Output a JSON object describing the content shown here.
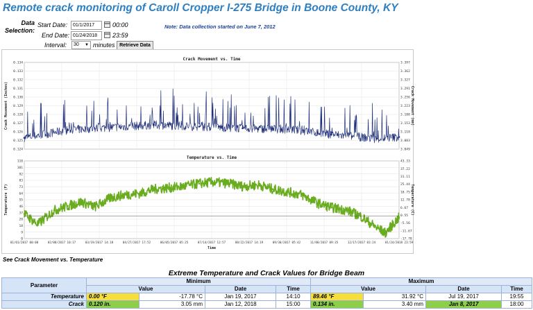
{
  "page": {
    "title": "Remote crack monitoring of Caroll Cropper I-275 Bridge in Boone County, KY"
  },
  "form": {
    "section_label_line1": "Data",
    "section_label_line2": "Selection:",
    "start_label": "Start Date:",
    "start_value": "01/1/2017",
    "start_time": "00:00",
    "end_label": "End Date:",
    "end_value": "01/24/2018",
    "end_time": "23:59",
    "interval_label": "Interval:",
    "interval_value": "30",
    "interval_unit": "minutes",
    "retrieve_label": "Retrieve Data",
    "note": "Note: Data collection started on June 7, 2012"
  },
  "colors": {
    "crack_series": "#1f2f7a",
    "temp_series": "#6aac1f",
    "title": "#2e7fc1",
    "note": "#1c3fa0",
    "highlight_yellow": "#f6df3a",
    "highlight_green": "#8dcf4b"
  },
  "chart_data": [
    {
      "type": "line",
      "title": "Crack Movement vs. Time",
      "ylabel": "Crack Movement (Inches)",
      "y2label": "Crack Movement (mm)",
      "ylim": [
        0.124,
        0.134
      ],
      "y_ticks": [
        "0.134",
        "0.133",
        "0.132",
        "0.131",
        "0.130",
        "0.129",
        "0.128",
        "0.127",
        "0.126",
        "0.125",
        "0.124"
      ],
      "y2_ticks": [
        "3.397",
        "3.362",
        "3.327",
        "3.291",
        "3.256",
        "3.223",
        "3.188",
        "3.153",
        "3.118",
        "3.083",
        "3.049"
      ],
      "grid": true,
      "series": [
        {
          "x": [
            "2017-01-01",
            "2017-02-15",
            "2017-04-01",
            "2017-05-15",
            "2017-07-01",
            "2017-08-15",
            "2017-10-01",
            "2017-11-15",
            "2018-01-01",
            "2018-01-24"
          ],
          "values": [
            0.1253,
            0.1262,
            0.1265,
            0.1268,
            0.1266,
            0.1264,
            0.1263,
            0.1257,
            0.1252,
            0.1254
          ]
        }
      ]
    },
    {
      "type": "line",
      "title": "Temperature vs. Time",
      "xlabel": "Time",
      "ylabel": "Temperature (F)",
      "y2label": "Temperature (C)",
      "ylim": [
        0,
        110
      ],
      "y_ticks": [
        "110",
        "101",
        "92",
        "83",
        "73",
        "64",
        "55",
        "46",
        "37",
        "28",
        "18",
        "9",
        "0"
      ],
      "y2_ticks": [
        "43.33",
        "37.22",
        "31.11",
        "25.44",
        "18.75",
        "12.78",
        "6.67",
        "0.55",
        "-5.56",
        "-11.67",
        "-17.78"
      ],
      "x_ticks": [
        "01/01/2017 00:00",
        "02/08/2017 10:17",
        "03/19/2017 14:18",
        "04/27/2017 17:52",
        "06/05/2017 05:25",
        "07/14/2017 12:57",
        "08/22/2017 14:19",
        "09/30/2017 05:42",
        "11/08/2017 09:35",
        "12/17/2017 03:24",
        "01/24/2018 23:59"
      ],
      "grid": true,
      "series": [
        {
          "x": [
            "2017-01-01",
            "2017-01-15",
            "2017-02-01",
            "2017-02-15",
            "2017-03-01",
            "2017-03-15",
            "2017-04-01",
            "2017-04-15",
            "2017-05-01",
            "2017-05-15",
            "2017-06-01",
            "2017-06-15",
            "2017-07-01",
            "2017-07-15",
            "2017-08-01",
            "2017-08-15",
            "2017-09-01",
            "2017-09-15",
            "2017-10-01",
            "2017-10-15",
            "2017-11-01",
            "2017-11-15",
            "2017-12-01",
            "2017-12-15",
            "2018-01-01",
            "2018-01-10",
            "2018-01-24"
          ],
          "values": [
            35,
            20,
            40,
            46,
            52,
            45,
            58,
            62,
            64,
            70,
            72,
            74,
            78,
            80,
            78,
            74,
            76,
            70,
            66,
            62,
            50,
            44,
            40,
            32,
            15,
            8,
            30
          ]
        }
      ]
    }
  ],
  "table": {
    "title": "Extreme Temperature and Crack Values for Bridge Beam",
    "parameter_header": "Parameter",
    "min_header": "Minimum",
    "max_header": "Maximum",
    "col_value": "Value",
    "col_date": "Date",
    "col_time": "Time",
    "rows": [
      {
        "name": "Temperature",
        "min_value": "0.00",
        "min_unit": "°F",
        "min_alt": "-17.78 °C",
        "min_date": "Jan 19, 2017",
        "min_time": "14:10",
        "max_value": "89.46",
        "max_unit": "°F",
        "max_alt": "31.92 °C",
        "max_date": "Jul 19, 2017",
        "max_time": "19:55"
      },
      {
        "name": "Crack",
        "min_value": "0.120",
        "min_unit": "in.",
        "min_alt": "3.05 mm",
        "min_date": "Jan 12, 2018",
        "min_time": "15:00",
        "max_value": "0.134",
        "max_unit": "in.",
        "max_alt": "3.40 mm",
        "max_date": "Jan 8, 2017",
        "max_time": "18:00"
      }
    ]
  },
  "links": {
    "see_crack_vs_temp": "See Crack Movement vs. Temperature"
  }
}
